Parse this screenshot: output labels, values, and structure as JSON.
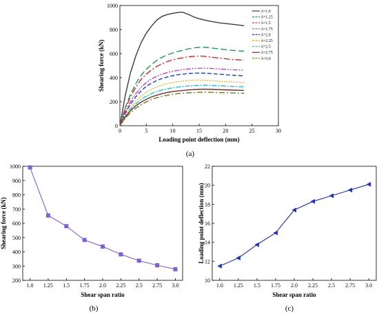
{
  "chart_data": [
    {
      "type": "line",
      "caption": "(a)",
      "xlabel": "Loading point deflection (mm)",
      "ylabel": "Shearing force (kN)",
      "xlim": [
        0,
        30
      ],
      "ylim": [
        0,
        1000
      ],
      "xticks": [
        0,
        5,
        10,
        15,
        20,
        25,
        30
      ],
      "yticks": [
        0,
        200,
        400,
        600,
        800,
        1000
      ],
      "legend_position": "top-right",
      "series": [
        {
          "name": "λ=1.0",
          "color": "#3a3a3a",
          "dash": "solid",
          "points": [
            [
              0,
              0
            ],
            [
              1,
              250
            ],
            [
              2,
              440
            ],
            [
              3,
              580
            ],
            [
              4,
              690
            ],
            [
              5,
              770
            ],
            [
              6,
              830
            ],
            [
              7,
              880
            ],
            [
              8,
              910
            ],
            [
              9,
              925
            ],
            [
              10,
              935
            ],
            [
              11,
              942
            ],
            [
              11.8,
              945
            ],
            [
              13,
              925
            ],
            [
              14,
              905
            ],
            [
              15,
              890
            ],
            [
              17,
              870
            ],
            [
              19,
              855
            ],
            [
              21,
              845
            ],
            [
              23.5,
              832
            ]
          ]
        },
        {
          "name": "λ=1.25",
          "color": "#1e9b5a",
          "dash": "9,4",
          "points": [
            [
              0,
              0
            ],
            [
              1,
              150
            ],
            [
              2,
              260
            ],
            [
              3,
              350
            ],
            [
              4,
              420
            ],
            [
              5,
              470
            ],
            [
              6,
              510
            ],
            [
              7,
              545
            ],
            [
              8,
              570
            ],
            [
              9,
              590
            ],
            [
              10,
              605
            ],
            [
              11,
              618
            ],
            [
              12,
              628
            ],
            [
              13,
              640
            ],
            [
              14,
              648
            ],
            [
              15,
              652
            ],
            [
              16,
              653
            ],
            [
              17,
              648
            ],
            [
              19,
              638
            ],
            [
              21,
              628
            ],
            [
              23.5,
              620
            ]
          ]
        },
        {
          "name": "λ=1.5",
          "color": "#e02222",
          "dash": "9,3,2,3",
          "points": [
            [
              0,
              0
            ],
            [
              1,
              140
            ],
            [
              2,
              240
            ],
            [
              3,
              320
            ],
            [
              4,
              385
            ],
            [
              5,
              430
            ],
            [
              6,
              465
            ],
            [
              7,
              495
            ],
            [
              8,
              515
            ],
            [
              9,
              535
            ],
            [
              10,
              548
            ],
            [
              11,
              558
            ],
            [
              12,
              566
            ],
            [
              13,
              574
            ],
            [
              14,
              578
            ],
            [
              15,
              580
            ],
            [
              16,
              578
            ],
            [
              17,
              572
            ],
            [
              19,
              562
            ],
            [
              21,
              552
            ],
            [
              23.5,
              545
            ]
          ]
        },
        {
          "name": "λ=1.75",
          "color": "#c03ec8",
          "dash": "7,2,2,2,2,2",
          "points": [
            [
              0,
              0
            ],
            [
              1,
              115
            ],
            [
              2,
              200
            ],
            [
              3,
              265
            ],
            [
              4,
              320
            ],
            [
              5,
              360
            ],
            [
              6,
              390
            ],
            [
              7,
              412
            ],
            [
              8,
              430
            ],
            [
              9,
              443
            ],
            [
              10,
              453
            ],
            [
              11,
              461
            ],
            [
              12,
              467
            ],
            [
              13,
              472
            ],
            [
              14,
              476
            ],
            [
              15,
              478
            ],
            [
              16,
              479
            ],
            [
              17,
              478
            ],
            [
              19,
              472
            ],
            [
              21,
              467
            ],
            [
              23.5,
              462
            ]
          ]
        },
        {
          "name": "λ=2.0",
          "color": "#1a3fbf",
          "dash": "6,3",
          "points": [
            [
              0,
              0
            ],
            [
              1,
              105
            ],
            [
              2,
              180
            ],
            [
              3,
              240
            ],
            [
              4,
              290
            ],
            [
              5,
              328
            ],
            [
              6,
              355
            ],
            [
              7,
              377
            ],
            [
              8,
              393
            ],
            [
              9,
              406
            ],
            [
              10,
              416
            ],
            [
              11,
              424
            ],
            [
              12,
              430
            ],
            [
              13,
              434
            ],
            [
              14,
              437
            ],
            [
              15,
              438
            ],
            [
              16,
              437
            ],
            [
              17,
              435
            ],
            [
              19,
              428
            ],
            [
              21,
              421
            ],
            [
              23.5,
              415
            ]
          ]
        },
        {
          "name": "λ=2.25",
          "color": "#d9a300",
          "dash": "1.5,2",
          "points": [
            [
              0,
              0
            ],
            [
              1,
              90
            ],
            [
              2,
              155
            ],
            [
              3,
              205
            ],
            [
              4,
              245
            ],
            [
              5,
              278
            ],
            [
              6,
              303
            ],
            [
              7,
              323
            ],
            [
              8,
              338
            ],
            [
              9,
              350
            ],
            [
              10,
              359
            ],
            [
              11,
              366
            ],
            [
              12,
              372
            ],
            [
              13,
              376
            ],
            [
              14,
              379
            ],
            [
              15,
              380
            ],
            [
              16,
              379
            ],
            [
              17,
              376
            ],
            [
              19,
              370
            ],
            [
              21,
              366
            ],
            [
              23.5,
              360
            ]
          ]
        },
        {
          "name": "λ=2.5",
          "color": "#20c0c8",
          "dash": "7,2,2,2",
          "points": [
            [
              0,
              0
            ],
            [
              1,
              80
            ],
            [
              2,
              138
            ],
            [
              3,
              182
            ],
            [
              4,
              218
            ],
            [
              5,
              246
            ],
            [
              6,
              268
            ],
            [
              7,
              285
            ],
            [
              8,
              298
            ],
            [
              9,
              308
            ],
            [
              10,
              316
            ],
            [
              11,
              322
            ],
            [
              12,
              327
            ],
            [
              13,
              331
            ],
            [
              14,
              334
            ],
            [
              15,
              336
            ],
            [
              16,
              337
            ],
            [
              17,
              336
            ],
            [
              19,
              332
            ],
            [
              21,
              328
            ],
            [
              23.5,
              324
            ]
          ]
        },
        {
          "name": "λ=2.75",
          "color": "#7a2a2a",
          "dash": "solid",
          "points": [
            [
              0,
              0
            ],
            [
              1,
              72
            ],
            [
              2,
              125
            ],
            [
              3,
              165
            ],
            [
              4,
              196
            ],
            [
              5,
              220
            ],
            [
              6,
              240
            ],
            [
              7,
              255
            ],
            [
              8,
              267
            ],
            [
              9,
              277
            ],
            [
              10,
              284
            ],
            [
              11,
              290
            ],
            [
              12,
              294
            ],
            [
              13,
              298
            ],
            [
              14,
              301
            ],
            [
              15,
              303
            ],
            [
              16,
              304
            ],
            [
              17,
              303
            ],
            [
              19,
              300
            ],
            [
              21,
              297
            ],
            [
              23.5,
              294
            ]
          ]
        },
        {
          "name": "λ=3.0",
          "color": "#6b7a1a",
          "dash": "8,3,2,3",
          "points": [
            [
              0,
              0
            ],
            [
              1,
              62
            ],
            [
              2,
              108
            ],
            [
              3,
              145
            ],
            [
              4,
              175
            ],
            [
              5,
              199
            ],
            [
              6,
              218
            ],
            [
              7,
              233
            ],
            [
              8,
              245
            ],
            [
              9,
              254
            ],
            [
              10,
              261
            ],
            [
              11,
              267
            ],
            [
              12,
              271
            ],
            [
              13,
              274
            ],
            [
              14,
              276
            ],
            [
              15,
              278
            ],
            [
              16,
              279
            ],
            [
              17,
              278
            ],
            [
              19,
              276
            ],
            [
              21,
              273
            ],
            [
              23.5,
              270
            ]
          ]
        }
      ]
    },
    {
      "type": "line",
      "caption": "(b)",
      "xlabel": "Shear span ratio",
      "ylabel": "Shearing force (kN)",
      "xlim": [
        0.9,
        3.1
      ],
      "ylim": [
        200,
        1000
      ],
      "xticks": [
        "1.0",
        "1.25",
        "1.5",
        "1.75",
        "2.0",
        "2.25",
        "2.5",
        "2.75",
        "3.0"
      ],
      "yticks": [
        200,
        300,
        400,
        500,
        600,
        700,
        800,
        900,
        1000
      ],
      "marker": "square",
      "color": "#8060d8",
      "x": [
        1.0,
        1.25,
        1.5,
        1.75,
        2.0,
        2.25,
        2.5,
        2.75,
        3.0
      ],
      "y": [
        992,
        655,
        580,
        483,
        437,
        382,
        338,
        306,
        278
      ]
    },
    {
      "type": "line",
      "caption": "(c)",
      "xlabel": "Shear span ratio",
      "ylabel": "Loading point deflection (mm)",
      "xlim": [
        0.9,
        3.1
      ],
      "ylim": [
        10,
        22
      ],
      "xticks": [
        "1.0",
        "1.25",
        "1.5",
        "1.75",
        "2.0",
        "2.25",
        "2.5",
        "2.75",
        "3.0"
      ],
      "yticks": [
        10,
        12,
        14,
        16,
        18,
        20,
        22
      ],
      "marker": "triangle-left",
      "color": "#1f2fc8",
      "x": [
        1.0,
        1.25,
        1.5,
        1.75,
        2.0,
        2.25,
        2.5,
        2.75,
        3.0
      ],
      "y": [
        11.5,
        12.35,
        13.75,
        15.0,
        17.4,
        18.3,
        18.9,
        19.5,
        20.1
      ]
    }
  ]
}
